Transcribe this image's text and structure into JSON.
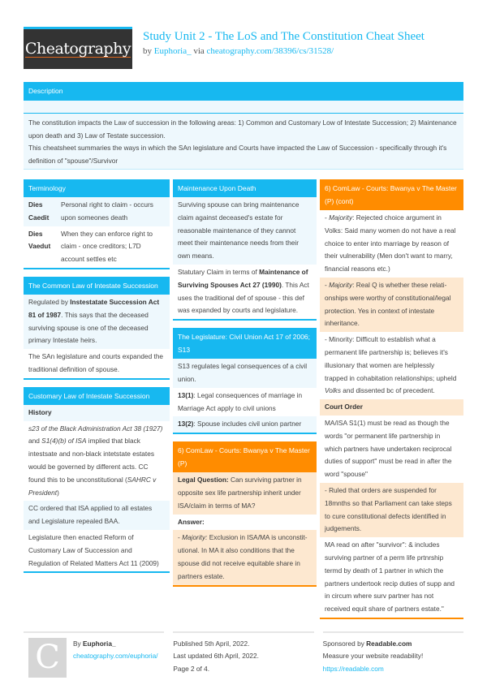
{
  "header": {
    "logo_text": "Cheatography",
    "title": "Study Unit 2 - The LoS and The Constitution Cheat Sheet",
    "by_label": "by",
    "author": "Euphoria_",
    "via_label": "via",
    "url": "cheatography.com/38396/cs/31528/"
  },
  "description": {
    "title": "Description",
    "lines": [
      "The constitution impacts the Law of succession in the following areas: 1) Common and Customary Low of Intestate Succession; 2) Maintenance upon death and 3) Law of Testate succession.",
      "This cheatsheet summaries the ways in which the SAn legislature and Courts have impacted the Law of Succession - specifically through it's definition of \"spouse\"/Survivor"
    ]
  },
  "colors": {
    "blue": "#17b8f0",
    "orange": "#ff8c00",
    "blue_light": "#eef8fd",
    "orange_light": "#fde8d0"
  },
  "columns": [
    [
      {
        "title": "Terminology",
        "theme": "blue",
        "rows": [
          {
            "type": "term",
            "term": "Dies Caedit",
            "def": "Personal right to claim - occurs upon someones death"
          },
          {
            "type": "term",
            "term": "Dies Vaedut",
            "def": "When they can enforce right to claim - once creditors; L7D account settles etc"
          }
        ]
      },
      {
        "title": "The Common Law of Intestate Succession",
        "theme": "blue",
        "rows": [
          {
            "type": "para",
            "segs": [
              {
                "t": "Regulated by "
              },
              {
                "t": "Instestatate Succession Act 81 of 1987",
                "b": true
              },
              {
                "t": ". This says that the deceased surviving spouse is one of the deceased primary Intestate heirs."
              }
            ]
          },
          {
            "type": "para",
            "segs": [
              {
                "t": "The SAn legislature and courts expanded the traditional definition of spouse."
              }
            ]
          }
        ]
      },
      {
        "title": "Customary Law of Intestate Succession",
        "theme": "blue",
        "rows": [
          {
            "type": "heading",
            "text": "History"
          },
          {
            "type": "para",
            "segs": [
              {
                "t": "s23 of the Black Administration Act 38 (1927)",
                "i": true
              },
              {
                "t": " and "
              },
              {
                "t": "S1(4)(b) of ISA",
                "i": true
              },
              {
                "t": " implied that black intestsate and non-black intetstate estates would be governed by different acts. CC found this to be unconstitutional ("
              },
              {
                "t": "SAHRC v President",
                "i": true
              },
              {
                "t": ")"
              }
            ]
          },
          {
            "type": "para",
            "segs": [
              {
                "t": "CC ordered that ISA applied to all estates and Legislature repealed BAA."
              }
            ]
          },
          {
            "type": "para",
            "segs": [
              {
                "t": "Legislature then enacted Reform of Customary Law of Succession and Regulation of Related Matters Act 11 (2009)"
              }
            ]
          }
        ]
      }
    ],
    [
      {
        "title": "Maintenance Upon Death",
        "theme": "blue",
        "rows": [
          {
            "type": "para",
            "segs": [
              {
                "t": "Surviving spouse can bring maintenance claim against deceased's estate for reasonable maintenance of they cannot meet their maintenance needs from their own means."
              }
            ]
          },
          {
            "type": "para",
            "segs": [
              {
                "t": "Statutary Claim in terms of "
              },
              {
                "t": "Maintenance of Surviving Spouses Act 27 (1990)",
                "b": true
              },
              {
                "t": ". This Act uses the traditional def of spouse - this def was expanded by courts and legislature."
              }
            ]
          }
        ]
      },
      {
        "title": "The Legislature: Civil Union Act 17 of 2006; S13",
        "theme": "blue",
        "rows": [
          {
            "type": "para",
            "segs": [
              {
                "t": "S13 regulates legal consequences of a civil union."
              }
            ]
          },
          {
            "type": "para",
            "segs": [
              {
                "t": "13(1)",
                "b": true
              },
              {
                "t": ": Legal consequences of marriage in Marriage Act apply to civil unions"
              }
            ]
          },
          {
            "type": "para",
            "segs": [
              {
                "t": "13(2)",
                "b": true
              },
              {
                "t": ": Spouse includes civil union partner"
              }
            ]
          }
        ]
      },
      {
        "title": "6) ComLaw - Courts: Bwanya v The Master (P)",
        "theme": "orange",
        "rows": [
          {
            "type": "para",
            "segs": [
              {
                "t": "Legal Question:",
                "b": true
              },
              {
                "t": " Can surviving partner in opposite sex life partnership inherit under ISA/claim in terms of MA?"
              }
            ]
          },
          {
            "type": "heading",
            "text": "Answer:"
          },
          {
            "type": "para",
            "segs": [
              {
                "t": "- "
              },
              {
                "t": "Majority:",
                "i": true
              },
              {
                "t": " Exclusion in ISA/MA is unconstit­utional. In MA it also conditions that the spouse did not receive equitable share in partners estate."
              }
            ]
          }
        ]
      }
    ],
    [
      {
        "title": "6) ComLaw - Courts: Bwanya v The Master (P) (cont)",
        "theme": "orange",
        "continued": true,
        "rows": [
          {
            "type": "para",
            "segs": [
              {
                "t": "- "
              },
              {
                "t": "Majority",
                "i": true
              },
              {
                "t": ": Rejected choice argument in Volks: Said many women do not have a real choice to enter into marriage by reason of their vulnerability (Men don't want to marry, financial reasons etc.)"
              }
            ]
          },
          {
            "type": "para",
            "segs": [
              {
                "t": "- "
              },
              {
                "t": "Majority",
                "i": true
              },
              {
                "t": ": Real Q is whether these relati­onships were worthy of constitutional/legal protection. Yes in context of intestate inheritance."
              }
            ]
          },
          {
            "type": "para",
            "segs": [
              {
                "t": "- Minority: Difficult to establish what a permanent life partnership is; believes it's illusionary that women are helplessly trapped in cohabitation relationships; upheld "
              },
              {
                "t": "Volks",
                "i": true
              },
              {
                "t": " and dissented bc of precedent."
              }
            ]
          },
          {
            "type": "heading",
            "text": "Court Order"
          },
          {
            "type": "para",
            "segs": [
              {
                "t": "MA/ISA S1(1) must be read as though the words \"or permanent life partnership in which partners have undertaken reciprocal duties of support\" must be read in after the word \"spouse\""
              }
            ]
          },
          {
            "type": "para",
            "segs": [
              {
                "t": "- Ruled that orders are suspended for 18mnths so that Parliament can take steps to cure constitutional defects identified in judgements."
              }
            ]
          },
          {
            "type": "para",
            "segs": [
              {
                "t": "MA read on after \"survivor\": & includes surviving partner of a perm life prtnrship termd by death of 1 partner in which the partners undertook recip duties of supp and in circum where surv partner has not received equit share of partners estate.\""
              }
            ]
          }
        ]
      }
    ]
  ],
  "footer": {
    "avatar_letter": "C",
    "by_label": "By",
    "author": "Euphoria_",
    "author_url": "cheatography.com/euphoria/",
    "published": "Published 5th April, 2022.",
    "updated": "Last updated 6th April, 2022.",
    "page": "Page 2 of 4.",
    "sponsor_label": "Sponsored by",
    "sponsor": "Readable.com",
    "sponsor_tagline": "Measure your website readability!",
    "sponsor_url": "https://readable.com"
  }
}
